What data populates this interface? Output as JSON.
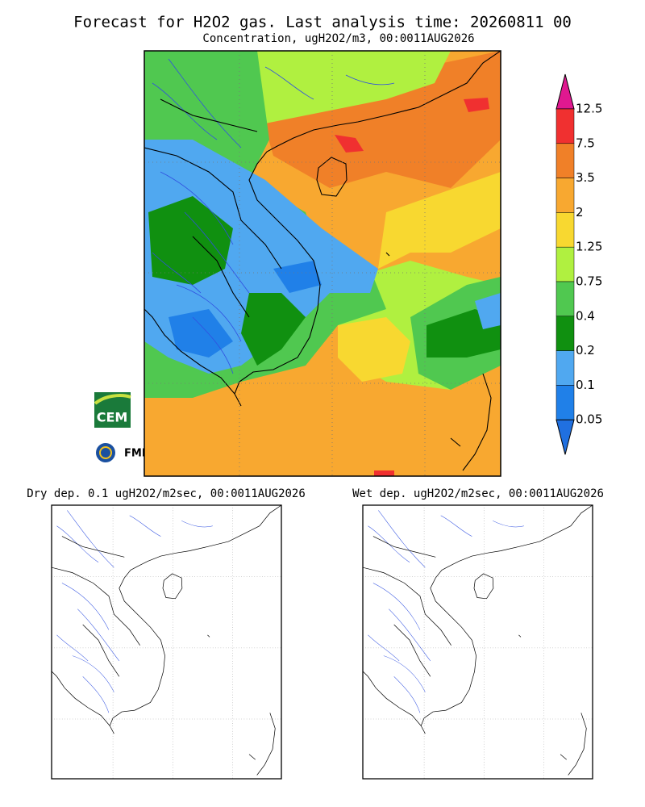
{
  "title": "Forecast for H2O2 gas. Last analysis time: 20260811 00",
  "subtitle": "Concentration, ugH2O2/m3, 00:0011AUG2026",
  "colorbar": {
    "labels": [
      12.5,
      7.5,
      3.5,
      2,
      1.25,
      0.75,
      0.4,
      0.2,
      0.1,
      0.05
    ],
    "colors": [
      "#e01890",
      "#f03030",
      "#f08028",
      "#f8a830",
      "#f8d830",
      "#b0f040",
      "#50c850",
      "#109010",
      "#50a8f0",
      "#2080e8",
      "#2070e0"
    ]
  },
  "logos": {
    "cem": "CEM",
    "fmi": "FMI"
  },
  "dry_dep": {
    "title": "Dry dep. 0.1 ugH2O2/m2sec, 00:0011AUG2026"
  },
  "wet_dep": {
    "title": "Wet dep. ugH2O2/m2sec, 00:0011AUG2026"
  }
}
